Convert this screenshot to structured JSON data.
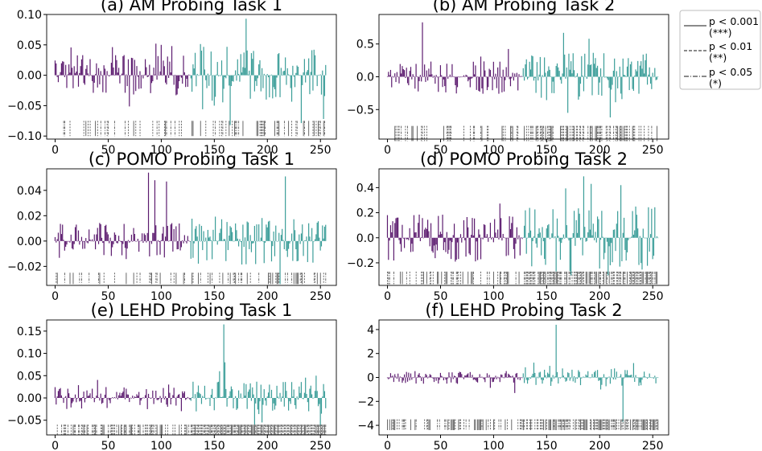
{
  "chart_data": [
    {
      "type": "bar",
      "title": "(a) AM Probing Task 1",
      "model": "AM",
      "task": 1,
      "n_features": 256,
      "split_index": 128,
      "ylim": [
        -0.105,
        0.1
      ],
      "yticks": [
        -0.1,
        -0.05,
        0.0,
        0.05,
        0.1
      ],
      "ytick_labels": [
        "−0.10",
        "−0.05",
        "0.00",
        "0.05",
        "0.10"
      ],
      "xlim": [
        -8,
        265
      ],
      "xticks": [
        0,
        50,
        100,
        150,
        200,
        250
      ],
      "amp": 0.028,
      "spikes": [
        [
          95,
          0.052
        ],
        [
          100,
          0.05
        ],
        [
          110,
          0.048
        ],
        [
          180,
          0.093
        ],
        [
          165,
          -0.082
        ],
        [
          150,
          -0.05
        ],
        [
          253,
          -0.072
        ]
      ],
      "sig_y": [
        -0.075,
        -0.1
      ],
      "sig_density": 0.3
    },
    {
      "type": "bar",
      "title": "(b) AM Probing Task 2",
      "model": "AM",
      "task": 2,
      "n_features": 256,
      "split_index": 128,
      "ylim": [
        -0.95,
        0.95
      ],
      "yticks": [
        -0.5,
        0.0,
        0.5
      ],
      "ytick_labels": [
        "−0.5",
        "0.0",
        "0.5"
      ],
      "xlim": [
        -8,
        265
      ],
      "xticks": [
        0,
        50,
        100,
        150,
        200,
        250
      ],
      "amp": 0.22,
      "spikes": [
        [
          33,
          0.83
        ],
        [
          166,
          0.67
        ],
        [
          190,
          0.58
        ],
        [
          170,
          -0.55
        ],
        [
          210,
          -0.62
        ]
      ],
      "sig_y": [
        -0.75,
        -0.98
      ],
      "sig_density": 0.4
    },
    {
      "type": "bar",
      "title": "(c) POMO Probing Task 1",
      "model": "POMO",
      "task": 1,
      "n_features": 256,
      "split_index": 128,
      "ylim": [
        -0.035,
        0.057
      ],
      "yticks": [
        -0.02,
        0.0,
        0.02,
        0.04
      ],
      "ytick_labels": [
        "−0.02",
        "0.00",
        "0.02",
        "0.04"
      ],
      "xlim": [
        -8,
        265
      ],
      "xticks": [
        0,
        50,
        100,
        150,
        200,
        250
      ],
      "amp": 0.012,
      "spikes": [
        [
          88,
          0.054
        ],
        [
          94,
          0.048
        ],
        [
          105,
          0.047
        ],
        [
          217,
          0.051
        ],
        [
          212,
          -0.034
        ]
      ],
      "sig_y": [
        -0.025,
        -0.034
      ],
      "sig_density": 0.35
    },
    {
      "type": "bar",
      "title": "(d) POMO Probing Task 2",
      "model": "POMO",
      "task": 2,
      "n_features": 256,
      "split_index": 128,
      "ylim": [
        -0.38,
        0.55
      ],
      "yticks": [
        -0.2,
        0.0,
        0.2,
        0.4
      ],
      "ytick_labels": [
        "−0.2",
        "0.0",
        "0.2",
        "0.4"
      ],
      "xlim": [
        -8,
        265
      ],
      "xticks": [
        0,
        50,
        100,
        150,
        200,
        250
      ],
      "amp": 0.16,
      "spikes": [
        [
          185,
          0.49
        ],
        [
          192,
          0.43
        ],
        [
          220,
          0.42
        ],
        [
          173,
          -0.3
        ],
        [
          208,
          -0.3
        ]
      ],
      "sig_y": [
        -0.27,
        -0.37
      ],
      "sig_density": 0.6
    },
    {
      "type": "bar",
      "title": "(e) LEHD Probing Task 1",
      "model": "LEHD",
      "task": 1,
      "n_features": 256,
      "split_index": 128,
      "ylim": [
        -0.083,
        0.175
      ],
      "yticks": [
        -0.05,
        0.0,
        0.05,
        0.1,
        0.15
      ],
      "ytick_labels": [
        "−0.05",
        "0.00",
        "0.05",
        "0.10",
        "0.15"
      ],
      "xlim": [
        -8,
        265
      ],
      "xticks": [
        0,
        50,
        100,
        150,
        200,
        250
      ],
      "amp": 0.022,
      "spikes": [
        [
          159,
          0.165
        ],
        [
          155,
          0.06
        ],
        [
          160,
          0.08
        ],
        [
          195,
          -0.055
        ],
        [
          188,
          -0.06
        ],
        [
          246,
          0.05
        ]
      ],
      "sig_y": [
        -0.06,
        -0.083
      ],
      "sig_density": 0.75
    },
    {
      "type": "bar",
      "title": "(f) LEHD Probing Task 2",
      "model": "LEHD",
      "task": 2,
      "n_features": 256,
      "split_index": 128,
      "ylim": [
        -4.8,
        4.8
      ],
      "yticks": [
        -4,
        -2,
        0,
        2,
        4
      ],
      "ytick_labels": [
        "−4",
        "−2",
        "0",
        "2",
        "4"
      ],
      "xlim": [
        -8,
        265
      ],
      "xticks": [
        0,
        50,
        100,
        150,
        200,
        250
      ],
      "amp": 0.45,
      "spikes": [
        [
          159,
          4.4
        ],
        [
          222,
          -3.7
        ],
        [
          120,
          -1.3
        ],
        [
          130,
          0.85
        ],
        [
          232,
          1.2
        ]
      ],
      "sig_y": [
        -3.5,
        -4.4
      ],
      "sig_density": 0.6
    }
  ],
  "legend": {
    "items": [
      {
        "line1": "p < 0.001",
        "line2": "(***)",
        "dash": ""
      },
      {
        "line1": "p < 0.01",
        "line2": "(**)",
        "dash": "4,2"
      },
      {
        "line1": "p < 0.05",
        "line2": "(*)",
        "dash": "6,2,1,2"
      }
    ]
  },
  "colors": {
    "first_half": "#5b1a6e",
    "second_half": "#3a9d98",
    "frame": "#000000",
    "sig_lines": "#444444"
  }
}
